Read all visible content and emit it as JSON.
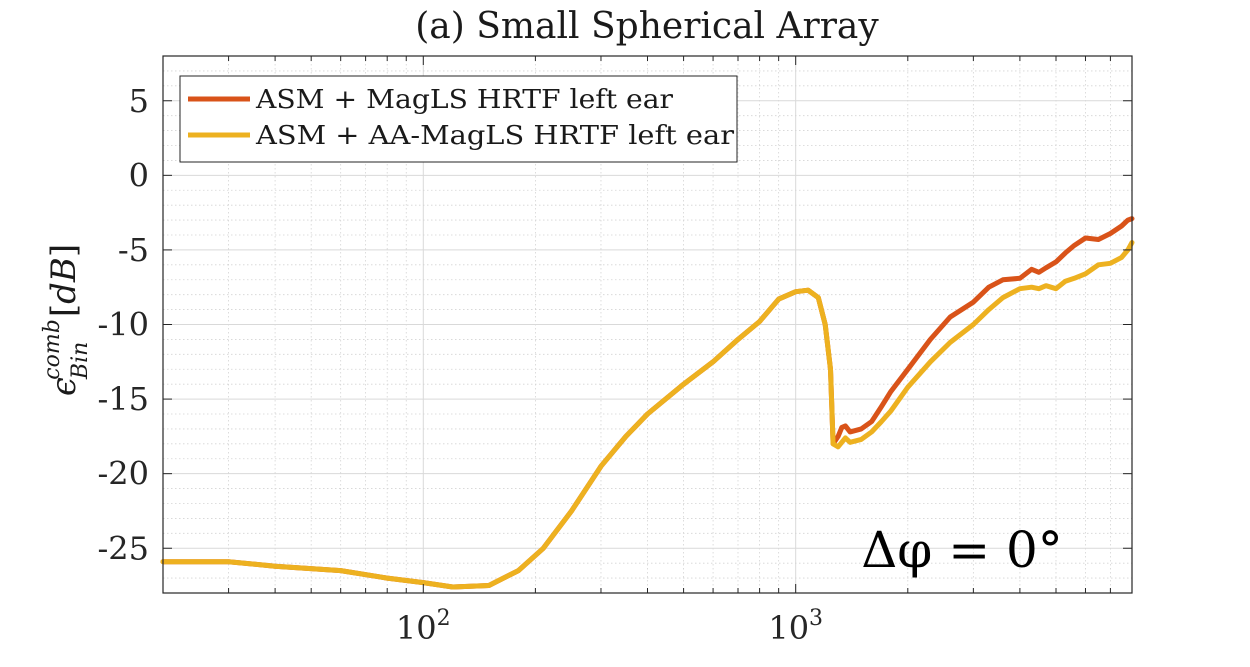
{
  "chart_data": {
    "type": "line",
    "title": "(a) Small Spherical Array",
    "ylabel": "ε_Bin^comb [dB]",
    "xlabel": "",
    "xscale": "log",
    "xlim": [
      20,
      8000
    ],
    "ylim": [
      -28,
      8
    ],
    "grid": true,
    "minor_grid": true,
    "legend_position": "top-left",
    "annotation": "Δφ = 0°",
    "x_ticks": [
      {
        "value": 100,
        "base": "10",
        "exp": "2"
      },
      {
        "value": 1000,
        "base": "10",
        "exp": "3"
      }
    ],
    "y_ticks": [
      {
        "value": 5,
        "label": "5"
      },
      {
        "value": 0,
        "label": "0"
      },
      {
        "value": -5,
        "label": "-5"
      },
      {
        "value": -10,
        "label": "-10"
      },
      {
        "value": -15,
        "label": "-15"
      },
      {
        "value": -20,
        "label": "-20"
      },
      {
        "value": -25,
        "label": "-25"
      }
    ],
    "series": [
      {
        "name": "ASM + MagLS HRTF left ear",
        "color": "#d95319",
        "x": [
          20,
          30,
          40,
          60,
          80,
          100,
          120,
          150,
          180,
          210,
          250,
          300,
          350,
          400,
          500,
          600,
          700,
          800,
          900,
          1000,
          1080,
          1150,
          1200,
          1240,
          1260,
          1300,
          1330,
          1360,
          1400,
          1500,
          1600,
          1700,
          1800,
          2000,
          2300,
          2600,
          3000,
          3300,
          3600,
          4000,
          4300,
          4500,
          4700,
          5000,
          5300,
          5600,
          6000,
          6500,
          7000,
          7500,
          7800,
          8000
        ],
        "y": [
          -25.9,
          -25.9,
          -26.2,
          -26.5,
          -27.0,
          -27.3,
          -27.6,
          -27.5,
          -26.5,
          -25.0,
          -22.5,
          -19.5,
          -17.5,
          -16.0,
          -14.0,
          -12.5,
          -11.0,
          -9.8,
          -8.3,
          -7.8,
          -7.7,
          -8.2,
          -10.0,
          -13.0,
          -18.0,
          -17.5,
          -16.9,
          -16.8,
          -17.2,
          -17.0,
          -16.5,
          -15.5,
          -14.5,
          -13.0,
          -11.0,
          -9.5,
          -8.5,
          -7.5,
          -7.0,
          -6.9,
          -6.3,
          -6.5,
          -6.2,
          -5.8,
          -5.2,
          -4.7,
          -4.2,
          -4.3,
          -3.9,
          -3.4,
          -3.0,
          -2.9
        ]
      },
      {
        "name": "ASM + AA-MagLS HRTF left ear",
        "color": "#edb120",
        "x": [
          20,
          30,
          40,
          60,
          80,
          100,
          120,
          150,
          180,
          210,
          250,
          300,
          350,
          400,
          500,
          600,
          700,
          800,
          900,
          1000,
          1080,
          1150,
          1200,
          1240,
          1260,
          1300,
          1330,
          1360,
          1400,
          1500,
          1600,
          1700,
          1800,
          2000,
          2300,
          2600,
          3000,
          3300,
          3600,
          4000,
          4300,
          4500,
          4700,
          5000,
          5300,
          5600,
          6000,
          6500,
          7000,
          7500,
          7800,
          8000
        ],
        "y": [
          -25.9,
          -25.9,
          -26.2,
          -26.5,
          -27.0,
          -27.3,
          -27.6,
          -27.5,
          -26.5,
          -25.0,
          -22.5,
          -19.5,
          -17.5,
          -16.0,
          -14.0,
          -12.5,
          -11.0,
          -9.8,
          -8.3,
          -7.8,
          -7.7,
          -8.2,
          -10.0,
          -13.0,
          -18.0,
          -18.2,
          -17.9,
          -17.6,
          -17.9,
          -17.7,
          -17.2,
          -16.5,
          -15.8,
          -14.2,
          -12.5,
          -11.2,
          -10.0,
          -9.0,
          -8.2,
          -7.6,
          -7.5,
          -7.6,
          -7.4,
          -7.6,
          -7.1,
          -6.9,
          -6.6,
          -6.0,
          -5.9,
          -5.5,
          -5.0,
          -4.5
        ]
      }
    ]
  }
}
